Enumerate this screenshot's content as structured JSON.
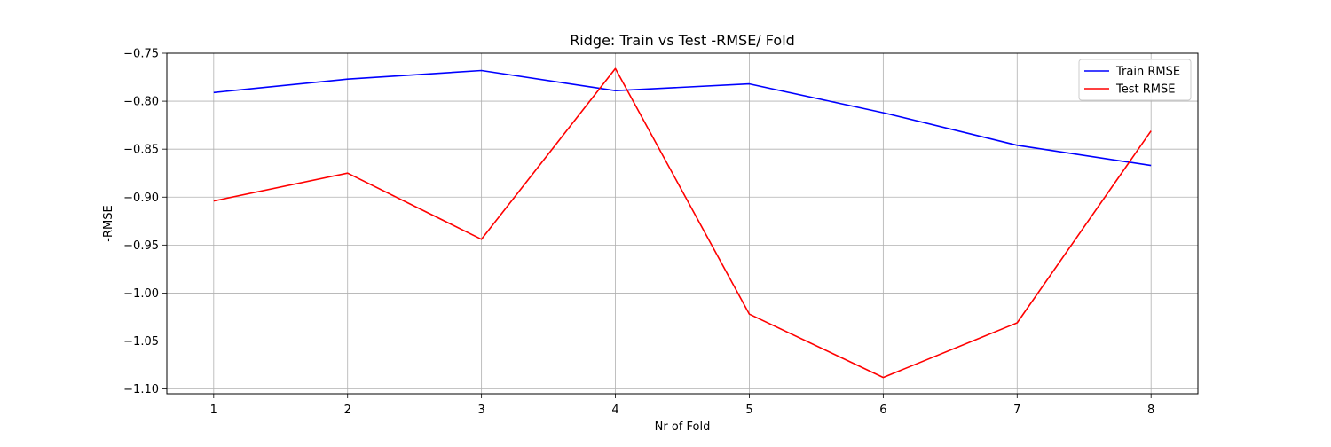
{
  "chart_data": {
    "type": "line",
    "title": "Ridge: Train vs Test -RMSE/ Fold",
    "xlabel": "Nr of Fold",
    "ylabel": "-RMSE",
    "x": [
      1,
      2,
      3,
      4,
      5,
      6,
      7,
      8
    ],
    "xlim": [
      0.65,
      8.35
    ],
    "ylim": [
      -1.105,
      -0.75
    ],
    "xticks": [
      1,
      2,
      3,
      4,
      5,
      6,
      7,
      8
    ],
    "yticks": [
      -1.1,
      -1.05,
      -1.0,
      -0.95,
      -0.9,
      -0.85,
      -0.8,
      -0.75
    ],
    "ytick_labels": [
      "−1.10",
      "−1.05",
      "−1.00",
      "−0.95",
      "−0.90",
      "−0.85",
      "−0.80",
      "−0.75"
    ],
    "grid": true,
    "legend_position": "top-right",
    "series": [
      {
        "name": "Train RMSE",
        "color": "#0000ff",
        "values": [
          -0.791,
          -0.777,
          -0.768,
          -0.789,
          -0.782,
          -0.812,
          -0.846,
          -0.867
        ]
      },
      {
        "name": "Test RMSE",
        "color": "#ff0000",
        "values": [
          -0.904,
          -0.875,
          -0.944,
          -0.766,
          -1.022,
          -1.088,
          -1.031,
          -0.831
        ]
      }
    ]
  }
}
